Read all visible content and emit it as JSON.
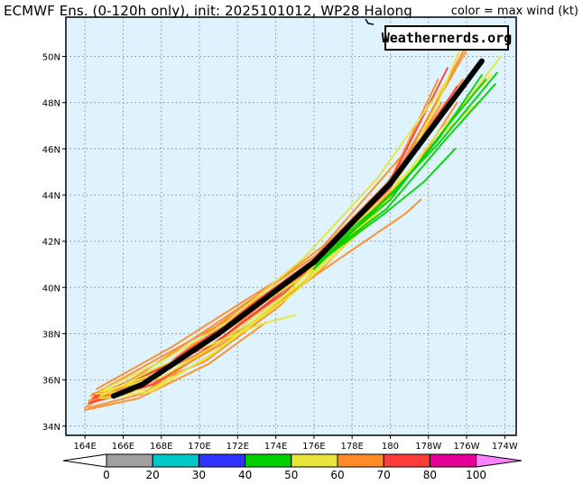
{
  "header": {
    "title": "ECMWF Ens. (0-120h only), init: 2025101012, WP28 Halong",
    "subtitle": "color = max wind (kt)"
  },
  "watermark": "Weathernerds.org",
  "map": {
    "lat_labels": [
      "34N",
      "36N",
      "38N",
      "40N",
      "42N",
      "44N",
      "46N",
      "48N",
      "50N"
    ],
    "lon_labels": [
      "164E",
      "166E",
      "168E",
      "170E",
      "172E",
      "174E",
      "176E",
      "178E",
      "180",
      "178W",
      "176W",
      "174W"
    ],
    "lat_range": [
      33.6,
      51.7
    ],
    "lon_range": [
      163.0,
      186.6
    ],
    "ocean_color": "#dff3ff",
    "grid": "dotted"
  },
  "colorbar": {
    "ticks": [
      "0",
      "20",
      "30",
      "40",
      "50",
      "60",
      "70",
      "80",
      "100"
    ],
    "colors": [
      "#ffffff",
      "#a0a0a0",
      "#00c8c8",
      "#3232ff",
      "#00d200",
      "#e6e63c",
      "#ff8c28",
      "#ff3c3c",
      "#e60096",
      "#ff82ff"
    ]
  },
  "chart_data": {
    "type": "map_tracks",
    "units": "max wind (kt)",
    "mean_track": [
      [
        165.5,
        35.3
      ],
      [
        167,
        35.8
      ],
      [
        171,
        38.0
      ],
      [
        176,
        41.1
      ],
      [
        180,
        44.5
      ],
      [
        184.8,
        49.8
      ]
    ],
    "tracks": [
      {
        "color": "#ff8c28",
        "points": [
          [
            164.5,
            35.1
          ],
          [
            168,
            36.4
          ],
          [
            171,
            38.1
          ],
          [
            176,
            41.0
          ],
          [
            180,
            44.3
          ],
          [
            184,
            50.5
          ]
        ]
      },
      {
        "color": "#ff8c28",
        "points": [
          [
            164.2,
            35.0
          ],
          [
            167.5,
            36.0
          ],
          [
            171,
            37.9
          ],
          [
            175.8,
            40.8
          ],
          [
            179.5,
            43.8
          ],
          [
            182.5,
            49.0
          ]
        ]
      },
      {
        "color": "#ff8c28",
        "points": [
          [
            164.0,
            34.8
          ],
          [
            167,
            36.3
          ],
          [
            170.8,
            38.4
          ],
          [
            176.3,
            41.5
          ],
          [
            180.2,
            44.8
          ],
          [
            184.5,
            51.0
          ]
        ]
      },
      {
        "color": "#ff8c28",
        "points": [
          [
            164.3,
            35.3
          ],
          [
            168,
            37.0
          ],
          [
            171.5,
            38.6
          ],
          [
            176,
            41.2
          ],
          [
            179.8,
            44.2
          ]
        ]
      },
      {
        "color": "#ff8c28",
        "points": [
          [
            164.5,
            35.2
          ],
          [
            168.2,
            36.6
          ],
          [
            171.8,
            38.9
          ],
          [
            176.5,
            41.8
          ],
          [
            180.5,
            45.6
          ]
        ]
      },
      {
        "color": "#ff8c28",
        "points": [
          [
            164.2,
            35.1
          ],
          [
            167.4,
            35.8
          ],
          [
            171.3,
            37.6
          ],
          [
            176.2,
            40.6
          ],
          [
            180.8,
            43.2
          ],
          [
            181.6,
            43.8
          ]
        ]
      },
      {
        "color": "#ff8c28",
        "points": [
          [
            164.0,
            34.7
          ],
          [
            166.8,
            35.2
          ],
          [
            170.5,
            36.7
          ],
          [
            173.5,
            38.5
          ]
        ]
      },
      {
        "color": "#ff8c28",
        "points": [
          [
            164.6,
            35.6
          ],
          [
            168.5,
            37.4
          ],
          [
            172.5,
            39.5
          ],
          [
            176,
            41.3
          ],
          [
            179.8,
            44.5
          ],
          [
            183.8,
            49.0
          ]
        ]
      },
      {
        "color": "#ff8c28",
        "points": [
          [
            164.3,
            35.0
          ],
          [
            166.5,
            35.5
          ],
          [
            170.3,
            36.8
          ],
          [
            174.2,
            39.2
          ],
          [
            178.0,
            42.4
          ],
          [
            181.4,
            45.3
          ],
          [
            183.5,
            48.0
          ]
        ]
      },
      {
        "color": "#ff8c28",
        "points": [
          [
            164.2,
            34.8
          ],
          [
            167.0,
            35.4
          ],
          [
            170.3,
            37.2
          ],
          [
            172.8,
            38.5
          ],
          [
            176.4,
            40.8
          ],
          [
            180.2,
            44.0
          ]
        ]
      },
      {
        "color": "#ff8c28",
        "points": [
          [
            164.4,
            35.4
          ],
          [
            166.7,
            35.8
          ],
          [
            170.6,
            37.4
          ],
          [
            175.0,
            40.5
          ],
          [
            179.0,
            43.0
          ],
          [
            182.7,
            48.0
          ]
        ]
      },
      {
        "color": "#ff3c3c",
        "points": [
          [
            164.4,
            35.2
          ],
          [
            168,
            36.5
          ],
          [
            171,
            38.2
          ],
          [
            176,
            41.2
          ],
          [
            180,
            44.6
          ],
          [
            183,
            49.5
          ]
        ]
      },
      {
        "color": "#ff3c3c",
        "points": [
          [
            164.2,
            35.0
          ],
          [
            167.6,
            35.8
          ],
          [
            171.2,
            37.8
          ],
          [
            176,
            40.9
          ],
          [
            179.9,
            44.2
          ],
          [
            183.5,
            48.7
          ]
        ]
      },
      {
        "color": "#ff3c3c",
        "points": [
          [
            164.5,
            35.3
          ],
          [
            167,
            36.2
          ],
          [
            170.6,
            37.5
          ],
          [
            174.5,
            39.8
          ],
          [
            177.5,
            42.0
          ]
        ]
      },
      {
        "color": "#e6e63c",
        "points": [
          [
            164.8,
            35.5
          ],
          [
            168,
            36.1
          ],
          [
            171,
            37.6
          ],
          [
            174.5,
            39.7
          ],
          [
            178,
            42.6
          ],
          [
            181.6,
            45.5
          ],
          [
            185.8,
            50.0
          ]
        ]
      },
      {
        "color": "#e6e63c",
        "points": [
          [
            164.6,
            35.4
          ],
          [
            167.5,
            35.6
          ],
          [
            170.5,
            37.0
          ],
          [
            175,
            39.8
          ],
          [
            178.8,
            42.7
          ],
          [
            182.6,
            46.8
          ],
          [
            185.3,
            49.2
          ]
        ]
      },
      {
        "color": "#e6e63c",
        "points": [
          [
            164.8,
            35.2
          ],
          [
            167.5,
            35.5
          ],
          [
            170.8,
            37.2
          ],
          [
            175.5,
            40.3
          ],
          [
            179.6,
            43.5
          ],
          [
            182.8,
            46.7
          ],
          [
            184.6,
            48.0
          ]
        ]
      },
      {
        "color": "#e6e63c",
        "points": [
          [
            165.0,
            35.5
          ],
          [
            168.5,
            36.5
          ],
          [
            172.0,
            38.6
          ],
          [
            176.4,
            41.0
          ],
          [
            180.0,
            44.0
          ],
          [
            182.5,
            48.0
          ],
          [
            184.0,
            51.0
          ]
        ]
      },
      {
        "color": "#e6e63c",
        "points": [
          [
            165.0,
            35.6
          ],
          [
            168.0,
            36.8
          ],
          [
            171.3,
            38.4
          ],
          [
            175.5,
            41.3
          ],
          [
            179.3,
            44.7
          ],
          [
            183.0,
            49.0
          ]
        ]
      },
      {
        "color": "#e6e63c",
        "points": [
          [
            164.8,
            35.3
          ],
          [
            167.7,
            36.5
          ],
          [
            170.5,
            37.5
          ],
          [
            173.2,
            38.4
          ],
          [
            175.0,
            38.8
          ]
        ]
      },
      {
        "color": "#00d200",
        "points": [
          [
            176,
            40.8
          ],
          [
            179.5,
            43.6
          ],
          [
            182.5,
            46.2
          ],
          [
            185.6,
            49.3
          ]
        ]
      },
      {
        "color": "#00d200",
        "points": [
          [
            176,
            41.0
          ],
          [
            179.8,
            43.4
          ],
          [
            183.0,
            46.5
          ],
          [
            185.5,
            48.8
          ]
        ]
      },
      {
        "color": "#00d200",
        "points": [
          [
            176.2,
            41.2
          ],
          [
            180.0,
            43.8
          ],
          [
            182.8,
            46.8
          ],
          [
            185.0,
            49.0
          ]
        ]
      },
      {
        "color": "#00d200",
        "points": [
          [
            176.4,
            41.4
          ],
          [
            180.3,
            44.2
          ],
          [
            182.5,
            46.4
          ],
          [
            184.8,
            49.2
          ]
        ]
      },
      {
        "color": "#00d200",
        "points": [
          [
            176.1,
            41.0
          ],
          [
            179.7,
            43.2
          ],
          [
            181.8,
            44.6
          ],
          [
            183.4,
            46.0
          ]
        ]
      }
    ]
  }
}
